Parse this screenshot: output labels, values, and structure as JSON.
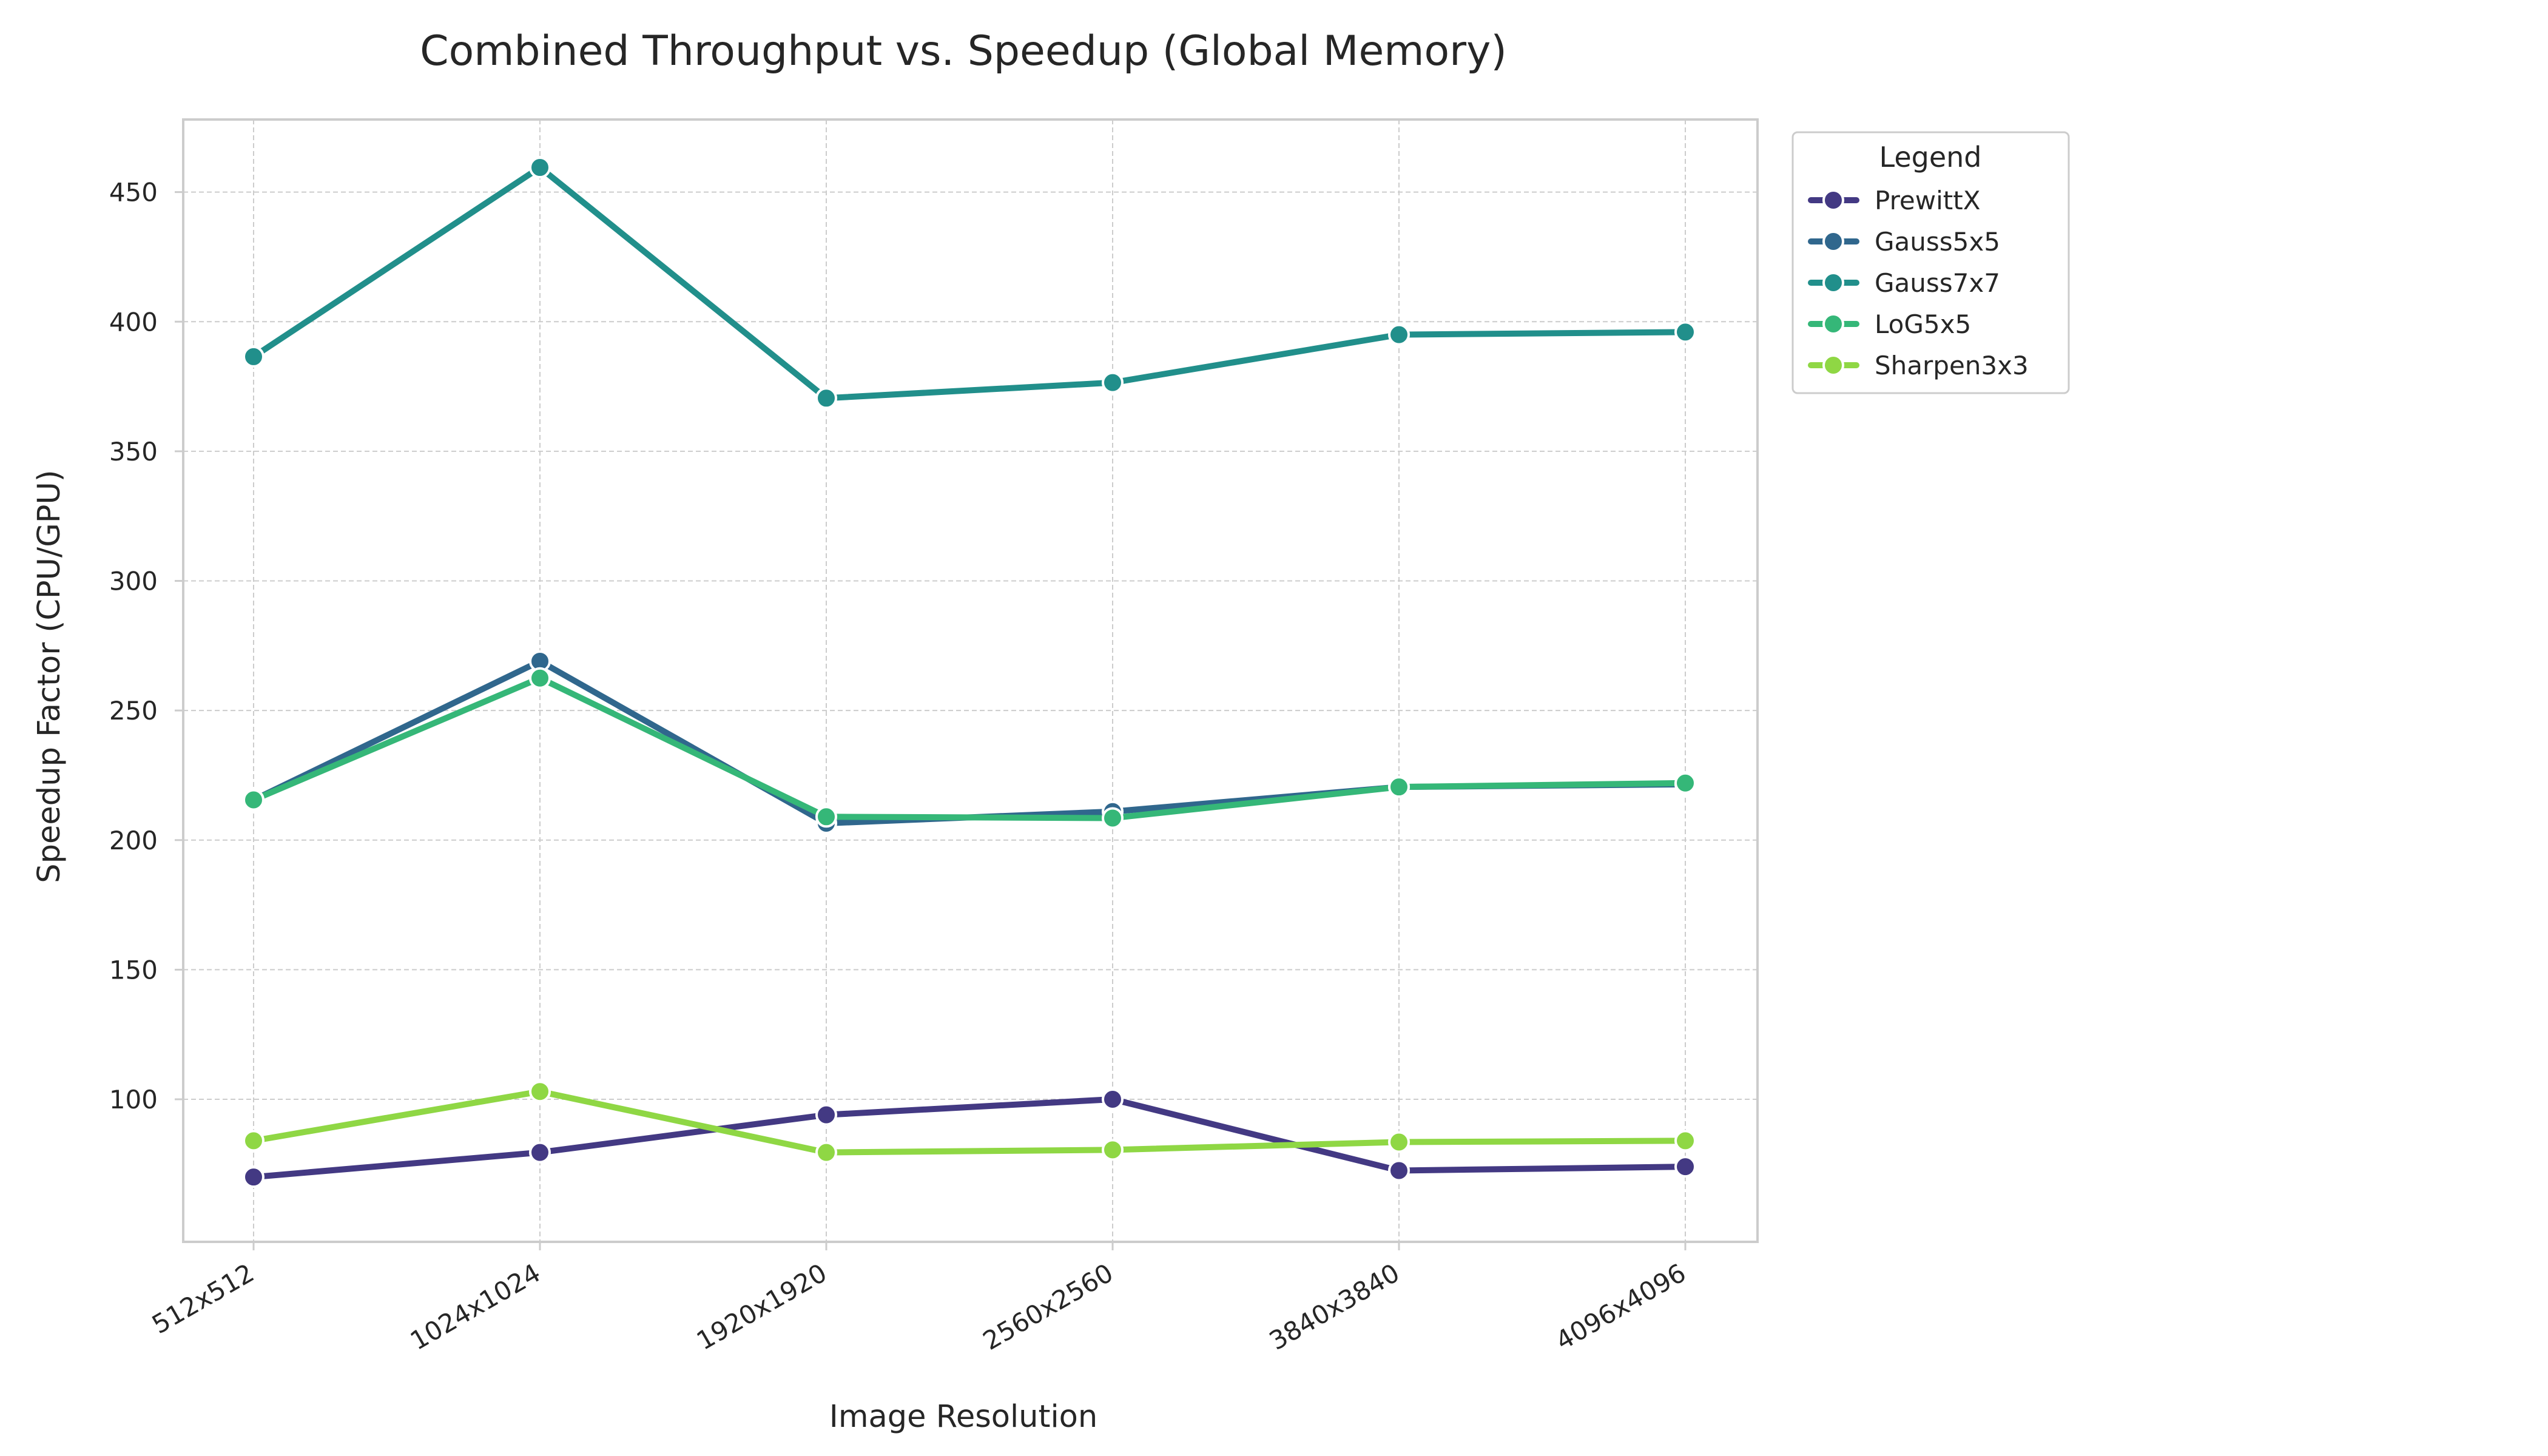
{
  "chart_data": {
    "type": "line",
    "title": "Combined Throughput vs. Speedup (Global Memory)",
    "xlabel": "Image Resolution",
    "ylabel": "Speedup Factor (CPU/GPU)",
    "categories": [
      "512x512",
      "1024x1024",
      "1920x1920",
      "2560x2560",
      "3840x3840",
      "4096x4096"
    ],
    "ylim": [
      45,
      478
    ],
    "yticks": [
      100,
      150,
      200,
      250,
      300,
      350,
      400,
      450
    ],
    "grid": true,
    "legend": {
      "title": "Legend",
      "placement": "outside-top-right"
    },
    "series": [
      {
        "name": "PrewittX",
        "color": "#433983",
        "values": [
          70,
          79.5,
          94,
          100,
          72.5,
          74
        ]
      },
      {
        "name": "Gauss5x5",
        "color": "#30678d",
        "values": [
          215.5,
          269,
          206.5,
          211,
          220.5,
          221.5
        ]
      },
      {
        "name": "Gauss7x7",
        "color": "#218f8b",
        "values": [
          386.5,
          459.5,
          370.5,
          376.5,
          395,
          396
        ]
      },
      {
        "name": "LoG5x5",
        "color": "#35b778",
        "values": [
          215.5,
          262.5,
          209,
          208.5,
          220.5,
          222
        ]
      },
      {
        "name": "Sharpen3x3",
        "color": "#8fd744",
        "values": [
          84,
          103,
          79.5,
          80.5,
          83.5,
          84
        ]
      }
    ]
  }
}
